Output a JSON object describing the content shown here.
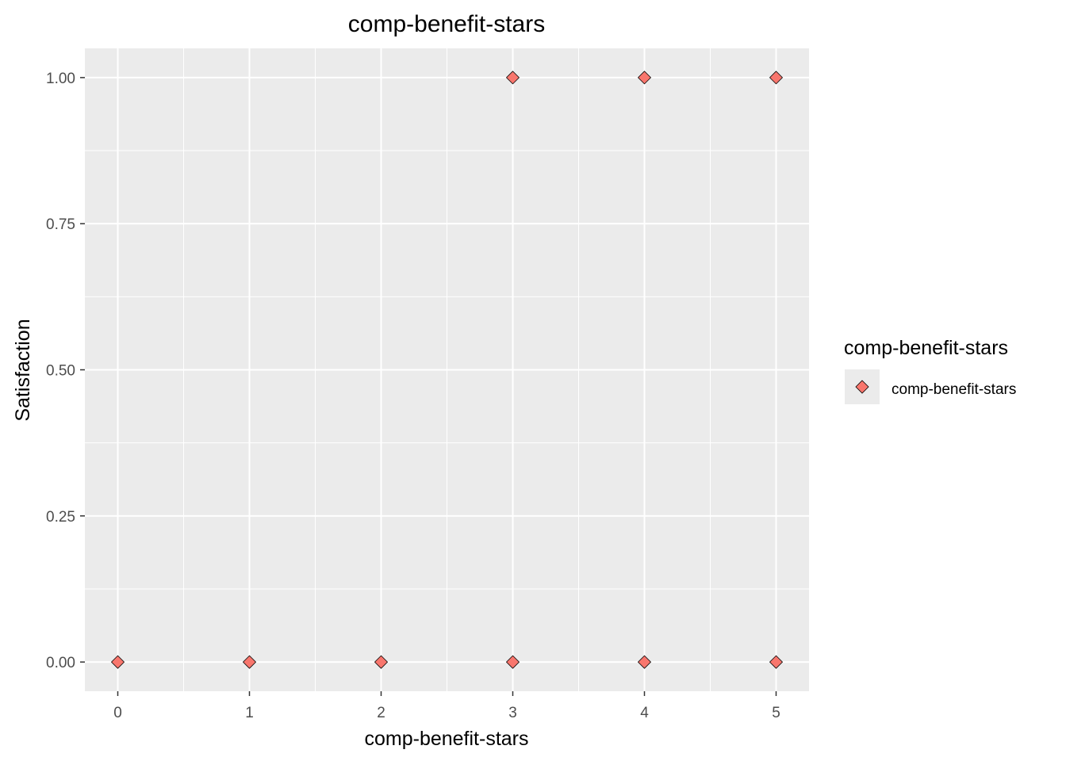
{
  "chart_data": {
    "type": "scatter",
    "title": "comp-benefit-stars",
    "xlabel": "comp-benefit-stars",
    "ylabel": "Satisfaction",
    "xlim": [
      -0.25,
      5.25
    ],
    "ylim": [
      -0.05,
      1.05
    ],
    "x_ticks": [
      0,
      1,
      2,
      3,
      4,
      5
    ],
    "x_tick_labels": [
      "0",
      "1",
      "2",
      "3",
      "4",
      "5"
    ],
    "y_ticks": [
      0,
      0.25,
      0.5,
      0.75,
      1.0
    ],
    "y_tick_labels": [
      "0.00",
      "0.25",
      "0.50",
      "0.75",
      "1.00"
    ],
    "grid": true,
    "legend": {
      "title": "comp-benefit-stars",
      "placement": "right",
      "entries": [
        "comp-benefit-stars"
      ]
    },
    "series": [
      {
        "name": "comp-benefit-stars",
        "color": "#F8766D",
        "marker": "diamond",
        "points": [
          {
            "x": 0,
            "y": 0
          },
          {
            "x": 1,
            "y": 0
          },
          {
            "x": 2,
            "y": 0
          },
          {
            "x": 3,
            "y": 0
          },
          {
            "x": 4,
            "y": 0
          },
          {
            "x": 5,
            "y": 0
          },
          {
            "x": 3,
            "y": 1
          },
          {
            "x": 4,
            "y": 1
          },
          {
            "x": 5,
            "y": 1
          }
        ]
      }
    ],
    "colors": {
      "panel_background": "#EBEBEB",
      "grid_major": "#FFFFFF",
      "point_fill": "#F8766D",
      "point_stroke": "#000000",
      "text": "#000000",
      "tick_text": "#4D4D4D"
    }
  }
}
